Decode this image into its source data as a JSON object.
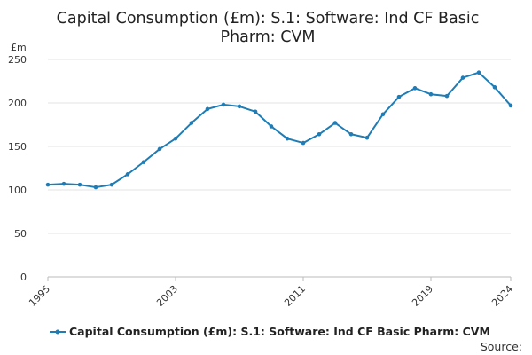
{
  "chart_data": {
    "type": "line",
    "title_lines": [
      "Capital Consumption (£m): S.1: Software: Ind CF Basic",
      "Pharm: CVM"
    ],
    "unit_label": "£m",
    "x_tick_labels": [
      "1995",
      "2003",
      "2011",
      "2019",
      "2024"
    ],
    "y_tick_labels": [
      "0",
      "50",
      "100",
      "150",
      "200",
      "250"
    ],
    "ylim": [
      0,
      250
    ],
    "xlim": [
      1995,
      2024
    ],
    "grid": true,
    "legend_position": "bottom",
    "series": [
      {
        "name": "Capital Consumption (£m): S.1: Software: Ind CF Basic Pharm: CVM",
        "color": "#1f7cb4",
        "x": [
          1995,
          1996,
          1997,
          1998,
          1999,
          2000,
          2001,
          2002,
          2003,
          2004,
          2005,
          2006,
          2007,
          2008,
          2009,
          2010,
          2011,
          2012,
          2013,
          2014,
          2015,
          2016,
          2017,
          2018,
          2019,
          2020,
          2021,
          2022,
          2023,
          2024
        ],
        "values": [
          106,
          107,
          106,
          103,
          106,
          118,
          132,
          147,
          159,
          177,
          193,
          198,
          196,
          190,
          173,
          159,
          154,
          164,
          177,
          164,
          160,
          187,
          207,
          217,
          210,
          208,
          229,
          235,
          218,
          197
        ]
      }
    ]
  },
  "source_label": "Source:"
}
